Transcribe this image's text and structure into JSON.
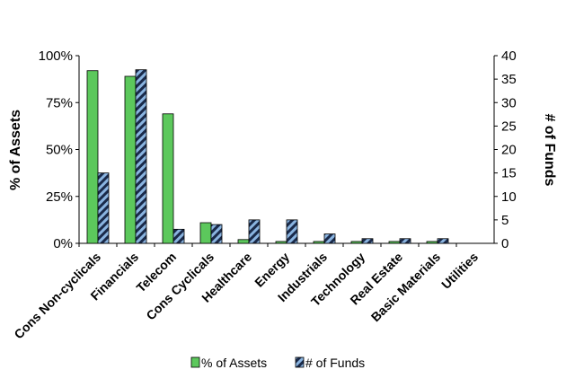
{
  "chart_data": {
    "type": "bar",
    "categories": [
      "Cons Non-cyclicals",
      "Financials",
      "Telecom",
      "Cons Cyclicals",
      "Healthcare",
      "Energy",
      "Industrials",
      "Technology",
      "Real Estate",
      "Basic Materials",
      "Utilities"
    ],
    "series": [
      {
        "name": "% of Assets",
        "axis": "left",
        "values": [
          92,
          89,
          69,
          11,
          2,
          1,
          1,
          1,
          1,
          1,
          0
        ],
        "color": "#5cc85c"
      },
      {
        "name": "# of Funds",
        "axis": "right",
        "values": [
          15,
          37,
          3,
          4,
          5,
          5,
          2,
          1,
          1,
          1,
          0
        ],
        "color": "#8ab4e0",
        "pattern": "diagonal-hatch"
      }
    ],
    "ylabel": "% of Assets",
    "y2label": "# of Funds",
    "ylim": [
      0,
      100
    ],
    "y2lim": [
      0,
      40
    ],
    "yticks": [
      "0%",
      "25%",
      "50%",
      "75%",
      "100%"
    ],
    "y2ticks": [
      "0",
      "5",
      "10",
      "15",
      "20",
      "25",
      "30",
      "35",
      "40"
    ],
    "grid": false,
    "legend": "bottom"
  }
}
